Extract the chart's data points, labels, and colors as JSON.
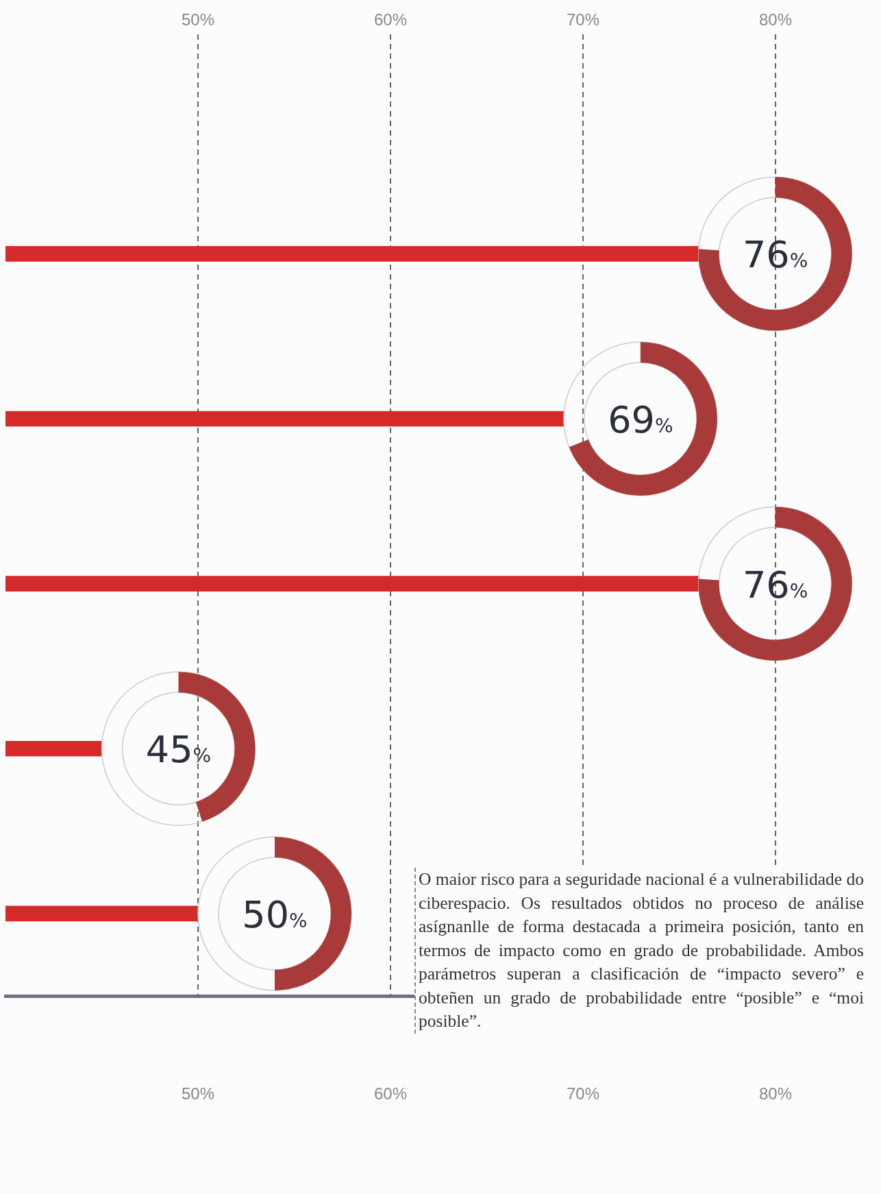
{
  "chart_data": {
    "type": "bar",
    "orientation": "horizontal",
    "categories": [
      null,
      null,
      null,
      null,
      null
    ],
    "values": [
      76,
      69,
      76,
      45,
      50
    ],
    "color": "#d42a2a",
    "value_labels": [
      "76%",
      "69%",
      "76%",
      "45%",
      "50%"
    ],
    "xlim": [
      40,
      82.6
    ],
    "xticks": [
      {
        "value": 50,
        "label": "50%"
      },
      {
        "value": 60,
        "label": "60%"
      },
      {
        "value": 70,
        "label": "70%"
      },
      {
        "value": 80,
        "label": "80%"
      }
    ],
    "x2lim": [
      40,
      82.6
    ],
    "x2ticks": [
      {
        "value": 50,
        "label": "50%"
      },
      {
        "value": 60,
        "label": "60%"
      },
      {
        "value": 70,
        "label": "70%"
      },
      {
        "value": 80,
        "label": "80%"
      }
    ],
    "grid": "x",
    "legend": false,
    "annotations": [
      "O maior risco para a seguridade nacional é a vulnerabilidade do ciberespacio. Os resultados obtidos no proceso de análise asígnanlle de forma destacada a primeira posición, tanto en termos de impacto como en grado de probabilidade. Ambos parámetros superan a clasificación de “impacto severo” e obteñen un grado de probabilidade entre “posible” e “moi posible”."
    ]
  }
}
